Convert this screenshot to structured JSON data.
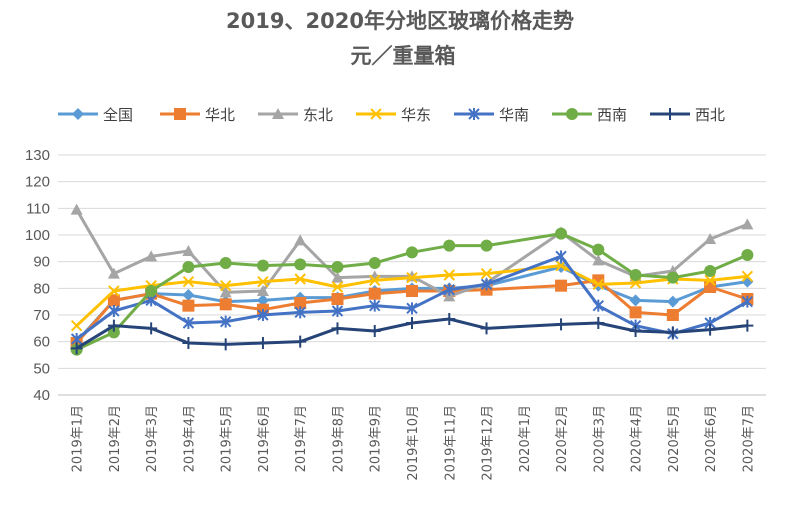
{
  "chart_data": {
    "type": "line",
    "title": "2019、2020年分地区玻璃价格走势",
    "subtitle": "元／重量箱",
    "xlabel": "",
    "ylabel": "",
    "ylim": [
      40,
      130
    ],
    "ytick_step": 10,
    "grid": true,
    "legend_position": "top",
    "categories": [
      "2019年1月",
      "2019年2月",
      "2019年3月",
      "2019年4月",
      "2019年5月",
      "2019年6月",
      "2019年7月",
      "2019年8月",
      "2019年9月",
      "2019年10月",
      "2019年11月",
      "2019年12月",
      "2020年1月",
      "2020年2月",
      "2020年3月",
      "2020年4月",
      "2020年5月",
      "2020年6月",
      "2020年7月"
    ],
    "series": [
      {
        "name": "全国",
        "color": "#5B9BD5",
        "marker": "diamond",
        "values": [
          60,
          75.5,
          78,
          77.5,
          75,
          75.5,
          76.5,
          76.5,
          79,
          80,
          80,
          81,
          null,
          88,
          81,
          75.5,
          75,
          80.5,
          82.5
        ]
      },
      {
        "name": "华北",
        "color": "#ED7D31",
        "marker": "square",
        "values": [
          59.5,
          75.5,
          78,
          73.5,
          74,
          72,
          74.5,
          76,
          78,
          79,
          79,
          79.5,
          null,
          81,
          83,
          71,
          70,
          80.5,
          76
        ]
      },
      {
        "name": "东北",
        "color": "#A5A5A5",
        "marker": "triangle",
        "values": [
          109.5,
          85.5,
          92,
          94,
          78.5,
          79,
          98,
          84,
          84.5,
          84.5,
          77,
          82,
          null,
          101,
          90.5,
          84.5,
          86.5,
          98.5,
          104
        ]
      },
      {
        "name": "华东",
        "color": "#FFC000",
        "marker": "x",
        "values": [
          66,
          79,
          81,
          82.5,
          81,
          82.5,
          83.5,
          80.5,
          83,
          84,
          85,
          85.5,
          null,
          88.5,
          81.5,
          82,
          83.5,
          83,
          84.5
        ]
      },
      {
        "name": "华南",
        "color": "#4472C4",
        "marker": "star",
        "values": [
          61,
          71.5,
          75.5,
          67,
          67.5,
          70,
          71,
          71.5,
          73.5,
          72.5,
          79.5,
          81.5,
          null,
          92,
          73.5,
          66,
          63,
          67,
          75
        ]
      },
      {
        "name": "西南",
        "color": "#70AD47",
        "marker": "circle",
        "values": [
          57,
          63.5,
          79,
          88,
          89.5,
          88.5,
          89,
          88,
          89.5,
          93.5,
          96,
          96,
          null,
          100.5,
          94.5,
          85,
          84,
          86.5,
          92.5
        ]
      },
      {
        "name": "西北",
        "color": "#264478",
        "marker": "plus",
        "values": [
          57.5,
          66,
          65,
          59.5,
          59,
          59.5,
          60,
          65,
          64,
          67,
          68.5,
          65,
          null,
          66.5,
          67,
          64,
          63.5,
          64.5,
          66
        ]
      }
    ]
  }
}
